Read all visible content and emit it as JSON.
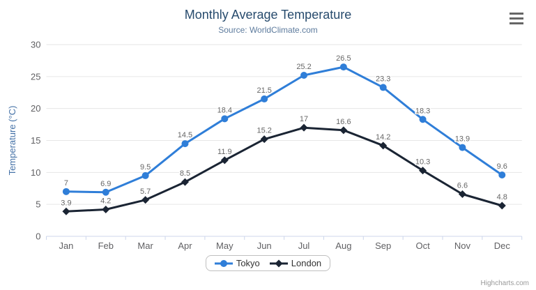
{
  "chart_data": {
    "type": "line",
    "title": "Monthly Average Temperature",
    "subtitle": "Source: WorldClimate.com",
    "xlabel": "",
    "ylabel": "Temperature (°C)",
    "categories": [
      "Jan",
      "Feb",
      "Mar",
      "Apr",
      "May",
      "Jun",
      "Jul",
      "Aug",
      "Sep",
      "Oct",
      "Nov",
      "Dec"
    ],
    "series": [
      {
        "name": "Tokyo",
        "marker": "circle",
        "color": "#2f7ed8",
        "values": [
          7,
          6.9,
          9.5,
          14.5,
          18.4,
          21.5,
          25.2,
          26.5,
          23.3,
          18.3,
          13.9,
          9.6
        ]
      },
      {
        "name": "London",
        "marker": "diamond",
        "color": "#1a2433",
        "values": [
          3.9,
          4.2,
          5.7,
          8.5,
          11.9,
          15.2,
          17,
          16.6,
          14.2,
          10.3,
          6.6,
          4.8
        ]
      }
    ],
    "ylim": [
      0,
      30
    ],
    "yticks": [
      0,
      5,
      10,
      15,
      20,
      25,
      30
    ],
    "grid": true,
    "data_labels": true,
    "legend_position": "bottom"
  },
  "icons": {
    "menu_icon": "hamburger-menu-icon"
  },
  "colors": {
    "title": "#274b6d",
    "subtitle": "#5d7b9d",
    "axis_title": "#4572a7",
    "axis_labels": "#606063",
    "data_labels": "#666666",
    "gridline": "#e6e6e6",
    "axis_line": "#ccd6eb",
    "legend_border": "#c0c0c0",
    "legend_text": "#333333",
    "credits": "#999999",
    "menu_icon": "#666666",
    "background": "#ffffff"
  },
  "credits": {
    "label": "Highcharts.com"
  }
}
